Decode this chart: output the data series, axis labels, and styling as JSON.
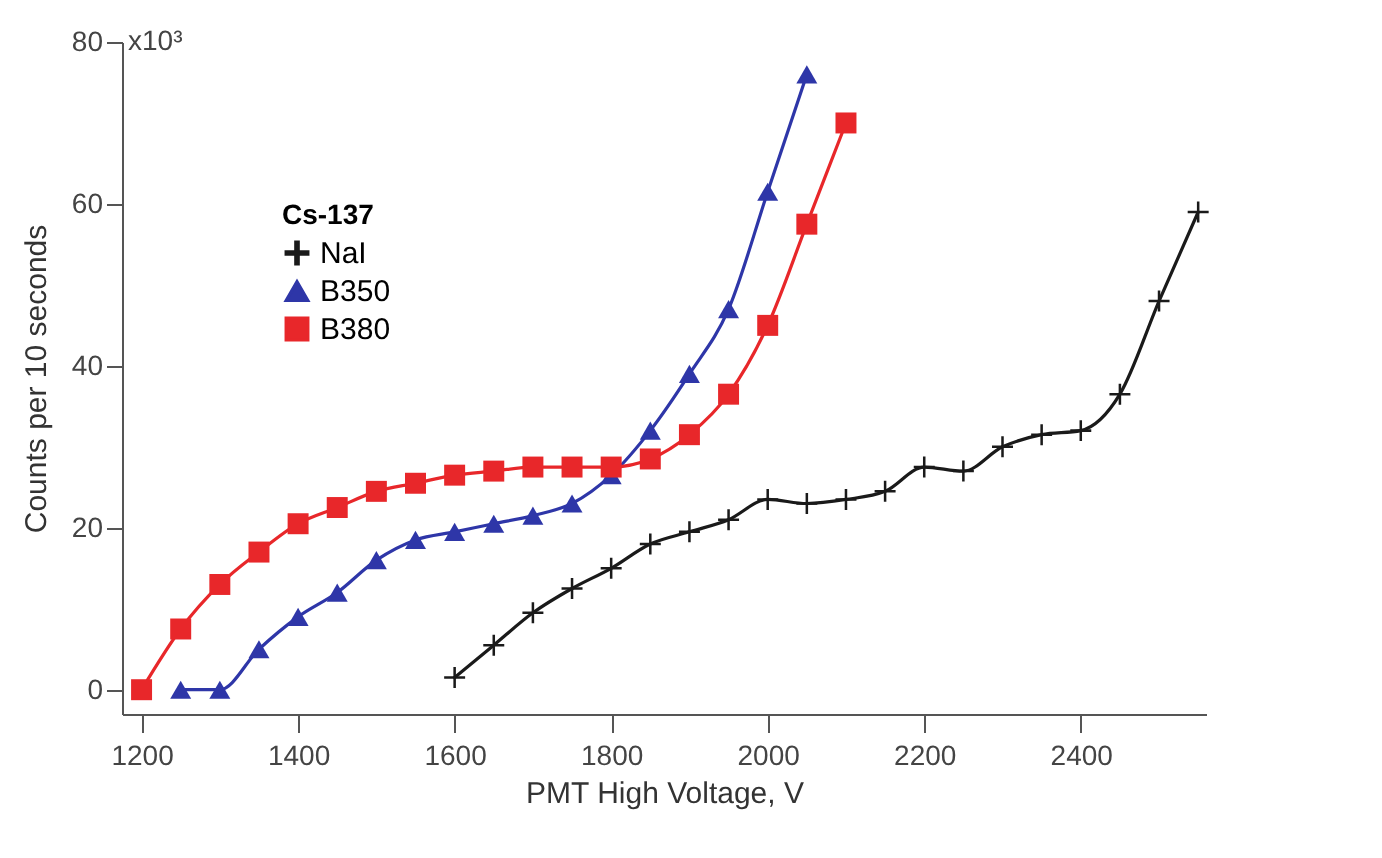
{
  "chart_data": {
    "type": "line",
    "xlabel": "PMT High Voltage, V",
    "ylabel": "Counts per 10 seconds",
    "legend_title": "Cs-137",
    "xlim": [
      1175,
      2560
    ],
    "xticks": [
      1200,
      1400,
      1600,
      1800,
      2000,
      2200,
      2400
    ],
    "ylim": [
      -3,
      80
    ],
    "yticks": [
      0,
      20,
      40,
      60,
      80
    ],
    "annotations": [
      "x10³"
    ],
    "grid": false,
    "legend": "top left",
    "line_style": "solid",
    "series": [
      {
        "name": "NaI",
        "color": "#1a1a1a",
        "marker": "cross",
        "x": [
          1600,
          1650,
          1700,
          1750,
          1800,
          1850,
          1900,
          1950,
          2000,
          2050,
          2100,
          2150,
          2200,
          2250,
          2300,
          2350,
          2400,
          2450,
          2500,
          2550
        ],
        "values": [
          1.5,
          5.5,
          9.5,
          12.5,
          15,
          18,
          19.5,
          21,
          23.5,
          23,
          23.5,
          24.5,
          27.5,
          27,
          30,
          31.5,
          32,
          36.5,
          48,
          59
        ]
      },
      {
        "name": "B350",
        "color": "#2e36a8",
        "marker": "triangle",
        "x": [
          1250,
          1300,
          1350,
          1400,
          1450,
          1500,
          1550,
          1600,
          1650,
          1700,
          1750,
          1800,
          1850,
          1900,
          1950,
          2000,
          2050
        ],
        "values": [
          0,
          0,
          5,
          9,
          12,
          16,
          18.5,
          19.5,
          20.5,
          21.5,
          23,
          26.5,
          32,
          39,
          47,
          61.5,
          76
        ]
      },
      {
        "name": "B380",
        "color": "#e8272a",
        "marker": "square",
        "x": [
          1200,
          1250,
          1300,
          1350,
          1400,
          1450,
          1500,
          1550,
          1600,
          1650,
          1700,
          1750,
          1800,
          1850,
          1900,
          1950,
          2000,
          2050,
          2100
        ],
        "values": [
          0,
          7.5,
          13,
          17,
          20.5,
          22.5,
          24.5,
          25.5,
          26.5,
          27,
          27.5,
          27.5,
          27.5,
          28.5,
          31.5,
          36.5,
          45,
          57.5,
          70
        ]
      }
    ]
  }
}
